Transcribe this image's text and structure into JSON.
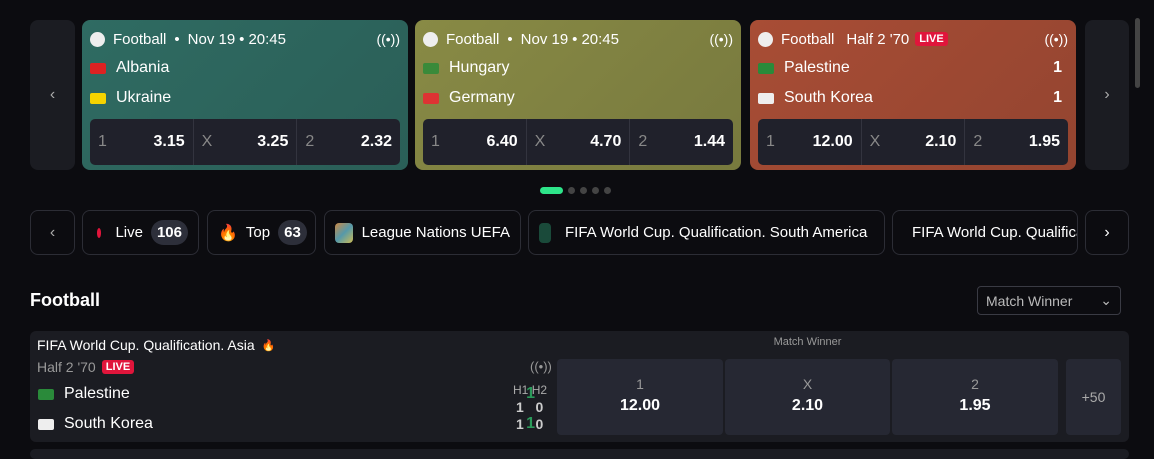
{
  "carousel": {
    "cards": [
      {
        "sport": "Football",
        "date": "Nov 19",
        "time": "20:45",
        "color": "#2f6b62",
        "teams": [
          {
            "name": "Albania",
            "flag": "#d22"
          },
          {
            "name": "Ukraine",
            "flag": "#f5d300"
          }
        ],
        "odds": [
          {
            "l": "1",
            "v": "3.15"
          },
          {
            "l": "X",
            "v": "3.25"
          },
          {
            "l": "2",
            "v": "2.32"
          }
        ]
      },
      {
        "sport": "Football",
        "date": "Nov 19",
        "time": "20:45",
        "color": "#888a45",
        "teams": [
          {
            "name": "Hungary",
            "flag": "#3a8a3a"
          },
          {
            "name": "Germany",
            "flag": "#d33"
          }
        ],
        "odds": [
          {
            "l": "1",
            "v": "6.40"
          },
          {
            "l": "X",
            "v": "4.70"
          },
          {
            "l": "2",
            "v": "1.44"
          }
        ]
      },
      {
        "sport": "Football",
        "period": "Half 2 '70",
        "live": "LIVE",
        "color": "#a84d35",
        "teams": [
          {
            "name": "Palestine",
            "flag": "#2a8a3a",
            "score": "1"
          },
          {
            "name": "South Korea",
            "flag": "#eee",
            "score": "1"
          }
        ],
        "odds": [
          {
            "l": "1",
            "v": "12.00"
          },
          {
            "l": "X",
            "v": "2.10"
          },
          {
            "l": "2",
            "v": "1.95"
          }
        ]
      }
    ],
    "active_page": 1,
    "pages": 5
  },
  "chips": [
    {
      "label": "Live",
      "count": "106"
    },
    {
      "label": "Top",
      "count": "63"
    },
    {
      "label": "League Nations UEFA"
    },
    {
      "label": "FIFA World Cup. Qualification. South America"
    },
    {
      "label": "FIFA World Cup. Qualification. Asia"
    }
  ],
  "section": {
    "title": "Football",
    "market_select": "Match Winner"
  },
  "match": {
    "league": "FIFA World Cup. Qualification. Asia",
    "period": "Half 2 '70",
    "live": "LIVE",
    "market": "Match Winner",
    "h1": "H1",
    "h2": "H2",
    "teams": [
      {
        "name": "Palestine",
        "score": "1",
        "h1": "1",
        "h2": "0"
      },
      {
        "name": "South Korea",
        "score": "1",
        "h1": "1",
        "h2": "0"
      }
    ],
    "odds": [
      {
        "l": "1",
        "v": "12.00"
      },
      {
        "l": "X",
        "v": "2.10"
      },
      {
        "l": "2",
        "v": "1.95"
      }
    ],
    "more": "+50"
  }
}
